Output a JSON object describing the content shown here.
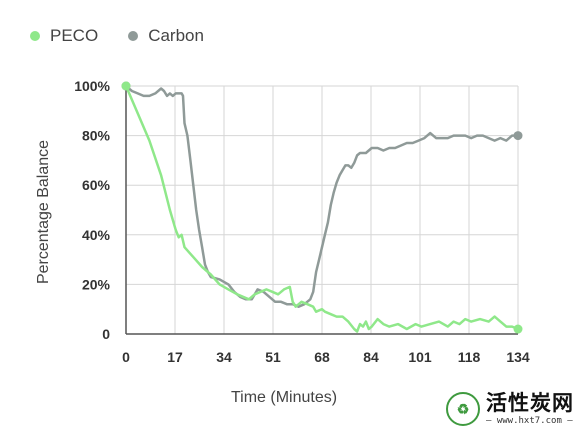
{
  "chart_data": {
    "type": "line",
    "title": "",
    "xlabel": "Time (Minutes)",
    "ylabel": "Percentage Balance",
    "x_ticks": [
      "0",
      "17",
      "34",
      "51",
      "68",
      "84",
      "101",
      "118",
      "134"
    ],
    "y_ticks": [
      "0",
      "20%",
      "40%",
      "60%",
      "80%",
      "100%"
    ],
    "xlim": [
      0,
      134
    ],
    "ylim": [
      0,
      100
    ],
    "grid": true,
    "legend_position": "top-left",
    "series": [
      {
        "name": "PECO",
        "color": "#8fe88a",
        "end_markers": true,
        "points": [
          [
            0,
            100
          ],
          [
            4,
            89
          ],
          [
            8,
            78
          ],
          [
            12,
            64
          ],
          [
            15,
            50
          ],
          [
            17,
            42
          ],
          [
            18,
            39
          ],
          [
            19,
            40
          ],
          [
            20,
            35
          ],
          [
            23,
            31
          ],
          [
            26,
            27
          ],
          [
            29,
            24
          ],
          [
            32,
            20
          ],
          [
            35,
            18
          ],
          [
            38,
            16
          ],
          [
            40,
            15
          ],
          [
            42,
            14
          ],
          [
            44,
            16
          ],
          [
            46,
            17
          ],
          [
            48,
            18
          ],
          [
            50,
            17
          ],
          [
            52,
            16
          ],
          [
            54,
            18
          ],
          [
            56,
            19
          ],
          [
            57,
            13
          ],
          [
            58,
            11
          ],
          [
            60,
            13
          ],
          [
            62,
            12
          ],
          [
            64,
            11
          ],
          [
            65,
            9
          ],
          [
            67,
            10
          ],
          [
            68,
            9
          ],
          [
            70,
            8
          ],
          [
            72,
            7
          ],
          [
            74,
            7
          ],
          [
            76,
            5
          ],
          [
            78,
            2
          ],
          [
            79,
            1
          ],
          [
            80,
            4
          ],
          [
            81,
            3
          ],
          [
            82,
            5
          ],
          [
            83,
            2
          ],
          [
            84,
            3
          ],
          [
            86,
            6
          ],
          [
            88,
            4
          ],
          [
            90,
            3
          ],
          [
            93,
            4
          ],
          [
            96,
            2
          ],
          [
            99,
            4
          ],
          [
            101,
            3
          ],
          [
            104,
            4
          ],
          [
            107,
            5
          ],
          [
            110,
            3
          ],
          [
            112,
            5
          ],
          [
            114,
            4
          ],
          [
            116,
            6
          ],
          [
            118,
            5
          ],
          [
            121,
            6
          ],
          [
            124,
            5
          ],
          [
            126,
            7
          ],
          [
            128,
            5
          ],
          [
            130,
            3
          ],
          [
            132,
            3
          ],
          [
            134,
            2
          ]
        ]
      },
      {
        "name": "Carbon",
        "color": "#8f9a98",
        "end_markers": true,
        "points": [
          [
            0,
            100
          ],
          [
            2,
            98
          ],
          [
            4,
            97
          ],
          [
            6,
            96
          ],
          [
            8,
            96
          ],
          [
            10,
            97
          ],
          [
            12,
            99
          ],
          [
            13,
            98
          ],
          [
            14,
            96
          ],
          [
            15,
            97
          ],
          [
            16,
            96
          ],
          [
            17,
            97
          ],
          [
            19,
            97
          ],
          [
            19.5,
            96
          ],
          [
            20,
            85
          ],
          [
            21,
            80
          ],
          [
            22,
            70
          ],
          [
            23,
            60
          ],
          [
            24,
            50
          ],
          [
            25,
            42
          ],
          [
            26,
            35
          ],
          [
            27,
            28
          ],
          [
            28,
            25
          ],
          [
            29,
            23
          ],
          [
            32,
            22
          ],
          [
            35,
            20
          ],
          [
            37,
            17
          ],
          [
            39,
            15
          ],
          [
            41,
            14
          ],
          [
            43,
            14
          ],
          [
            45,
            18
          ],
          [
            47,
            17
          ],
          [
            49,
            15
          ],
          [
            51,
            13
          ],
          [
            53,
            13
          ],
          [
            55,
            12
          ],
          [
            57,
            12
          ],
          [
            59,
            11
          ],
          [
            61,
            12
          ],
          [
            63,
            14
          ],
          [
            64,
            17
          ],
          [
            65,
            25
          ],
          [
            66,
            30
          ],
          [
            67,
            35
          ],
          [
            68,
            40
          ],
          [
            69,
            45
          ],
          [
            70,
            52
          ],
          [
            71,
            57
          ],
          [
            72,
            61
          ],
          [
            73,
            64
          ],
          [
            74,
            66
          ],
          [
            75,
            68
          ],
          [
            76,
            68
          ],
          [
            77,
            67
          ],
          [
            78,
            69
          ],
          [
            79,
            72
          ],
          [
            80,
            73
          ],
          [
            82,
            73
          ],
          [
            84,
            75
          ],
          [
            86,
            75
          ],
          [
            88,
            74
          ],
          [
            90,
            75
          ],
          [
            92,
            75
          ],
          [
            94,
            76
          ],
          [
            96,
            77
          ],
          [
            98,
            77
          ],
          [
            100,
            78
          ],
          [
            102,
            79
          ],
          [
            104,
            81
          ],
          [
            106,
            79
          ],
          [
            108,
            79
          ],
          [
            110,
            79
          ],
          [
            112,
            80
          ],
          [
            114,
            80
          ],
          [
            116,
            80
          ],
          [
            118,
            79
          ],
          [
            120,
            80
          ],
          [
            122,
            80
          ],
          [
            124,
            79
          ],
          [
            126,
            78
          ],
          [
            128,
            79
          ],
          [
            130,
            78
          ],
          [
            132,
            80
          ],
          [
            134,
            80
          ]
        ]
      }
    ]
  },
  "legend": [
    {
      "label": "PECO",
      "color": "#8fe88a"
    },
    {
      "label": "Carbon",
      "color": "#8f9a98"
    }
  ],
  "watermark": {
    "title": "活性炭网",
    "url": "— www.hxt7.com —",
    "icon": "recycle-leaf-icon"
  }
}
